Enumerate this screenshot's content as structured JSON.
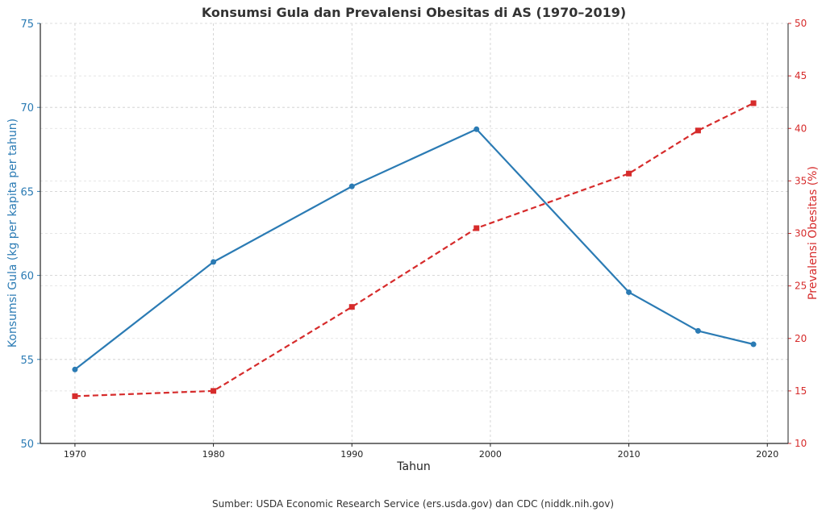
{
  "chart_data": {
    "type": "line",
    "title": "Konsumsi Gula dan Prevalensi Obesitas di AS (1970–2019)",
    "xlabel": "Tahun",
    "ylabel_left": "Konsumsi Gula (kg per kapita per tahun)",
    "ylabel_right": "Prevalensi Obesitas (%)",
    "source": "Sumber: USDA Economic Research Service (ers.usda.gov) dan CDC (niddk.nih.gov)",
    "xlim": [
      1967.5,
      2021.5
    ],
    "ylim_left": [
      50,
      75
    ],
    "ylim_right": [
      10,
      50
    ],
    "xticks": [
      1970,
      1980,
      1990,
      2000,
      2010,
      2020
    ],
    "yticks_left": [
      50,
      55,
      60,
      65,
      70,
      75
    ],
    "yticks_right": [
      10,
      15,
      20,
      25,
      30,
      35,
      40,
      45,
      50
    ],
    "grid": true,
    "colors": {
      "left": "#2b7bb4",
      "right": "#d62b2b"
    },
    "series": [
      {
        "axis": "left",
        "style": "solid",
        "marker": "circle",
        "x": [
          1970,
          1980,
          1990,
          1999,
          2010,
          2015,
          2019
        ],
        "values": [
          54.4,
          60.8,
          65.3,
          68.7,
          59.0,
          56.7,
          55.9
        ]
      },
      {
        "axis": "right",
        "style": "dashed",
        "marker": "square",
        "x": [
          1970,
          1980,
          1990,
          1999,
          2010,
          2015,
          2019
        ],
        "values": [
          14.5,
          15.0,
          23.0,
          30.5,
          35.7,
          39.8,
          42.4
        ]
      }
    ]
  }
}
